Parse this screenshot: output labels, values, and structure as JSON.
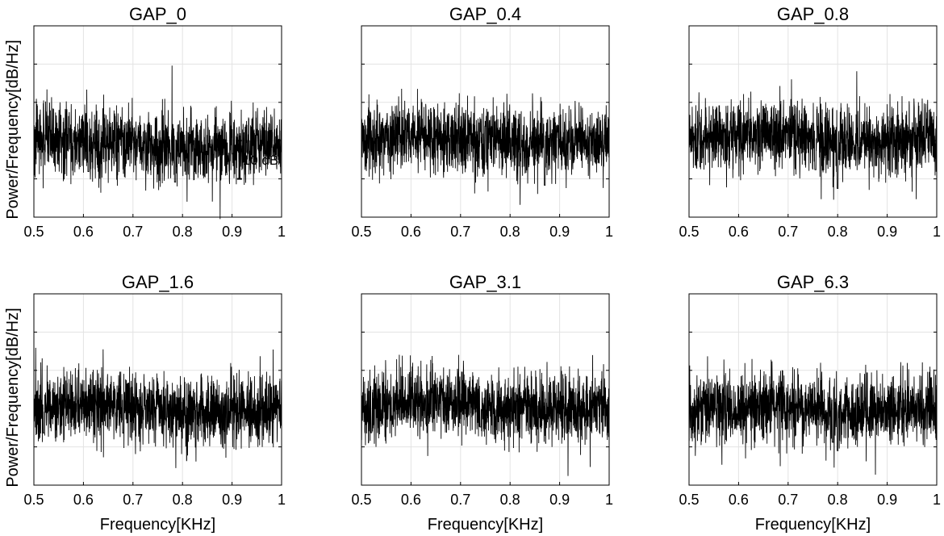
{
  "chart_data": [
    {
      "type": "line",
      "title": "GAP_0",
      "xlabel": "",
      "ylabel": "Power/Frequency[dB/Hz]",
      "xlim": [
        0.5,
        1
      ],
      "xticks": [
        "0.5",
        "0.6",
        "0.7",
        "0.8",
        "0.9",
        "1"
      ],
      "grid": true,
      "y_unit": "dB",
      "ylim_relative_db": [
        -20,
        30
      ],
      "baseline_db": [
        0.5,
        0.0,
        -1.0,
        -2.0,
        -1.5,
        0.0
      ],
      "band_db": 5,
      "dips": [
        {
          "x": 0.61,
          "depth_db": 8
        },
        {
          "x": 0.785,
          "depth_db": 9
        }
      ],
      "scale_bar_label": "10 dB",
      "scale_bar_x": 0.915,
      "scale_bar_db": 10
    },
    {
      "type": "line",
      "title": "GAP_0.4",
      "xlabel": "",
      "ylabel": "",
      "xlim": [
        0.5,
        1
      ],
      "xticks": [
        "0.5",
        "0.6",
        "0.7",
        "0.8",
        "0.9",
        "1"
      ],
      "grid": true,
      "y_unit": "dB",
      "ylim_relative_db": [
        -20,
        30
      ],
      "baseline_db": [
        1.0,
        1.5,
        1.0,
        -1.0,
        -0.5,
        1.0
      ],
      "band_db": 5,
      "dips": [
        {
          "x": 0.87,
          "depth_db": 11
        }
      ]
    },
    {
      "type": "line",
      "title": "GAP_0.8",
      "xlabel": "",
      "ylabel": "",
      "xlim": [
        0.5,
        1
      ],
      "xticks": [
        "0.5",
        "0.6",
        "0.7",
        "0.8",
        "0.9",
        "1"
      ],
      "grid": true,
      "y_unit": "dB",
      "ylim_relative_db": [
        -20,
        30
      ],
      "baseline_db": [
        1.0,
        1.5,
        1.5,
        -0.5,
        0.0,
        1.5
      ],
      "band_db": 5,
      "dips": [
        {
          "x": 0.755,
          "depth_db": 8
        },
        {
          "x": 0.8,
          "depth_db": 12
        }
      ]
    },
    {
      "type": "line",
      "title": "GAP_1.6",
      "xlabel": "Frequency[KHz]",
      "ylabel": "Power/Frequency[dB/Hz]",
      "xlim": [
        0.5,
        1
      ],
      "xticks": [
        "0.5",
        "0.6",
        "0.7",
        "0.8",
        "0.9",
        "1"
      ],
      "grid": true,
      "y_unit": "dB",
      "ylim_relative_db": [
        -20,
        30
      ],
      "baseline_db": [
        0.5,
        1.0,
        0.5,
        -1.5,
        -0.5,
        0.5
      ],
      "band_db": 5,
      "dips": [
        {
          "x": 0.52,
          "depth_db": 7
        },
        {
          "x": 0.68,
          "depth_db": 7
        }
      ]
    },
    {
      "type": "line",
      "title": "GAP_3.1",
      "xlabel": "Frequency[KHz]",
      "ylabel": "",
      "xlim": [
        0.5,
        1
      ],
      "xticks": [
        "0.5",
        "0.6",
        "0.7",
        "0.8",
        "0.9",
        "1"
      ],
      "grid": true,
      "y_unit": "dB",
      "ylim_relative_db": [
        -20,
        30
      ],
      "baseline_db": [
        0.5,
        1.5,
        2.0,
        0.0,
        0.0,
        1.5
      ],
      "band_db": 5,
      "dips": [
        {
          "x": 0.52,
          "depth_db": 7
        },
        {
          "x": 0.74,
          "depth_db": 6
        }
      ]
    },
    {
      "type": "line",
      "title": "GAP_6.3",
      "xlabel": "Frequency[KHz]",
      "ylabel": "",
      "xlim": [
        0.5,
        1
      ],
      "xticks": [
        "0.5",
        "0.6",
        "0.7",
        "0.8",
        "0.9",
        "1"
      ],
      "grid": true,
      "y_unit": "dB",
      "ylim_relative_db": [
        -20,
        30
      ],
      "baseline_db": [
        0.0,
        0.5,
        1.0,
        -1.0,
        -0.5,
        0.5
      ],
      "band_db": 5,
      "dips": [
        {
          "x": 0.8,
          "depth_db": 10
        },
        {
          "x": 0.79,
          "depth_db": 8
        }
      ]
    }
  ]
}
